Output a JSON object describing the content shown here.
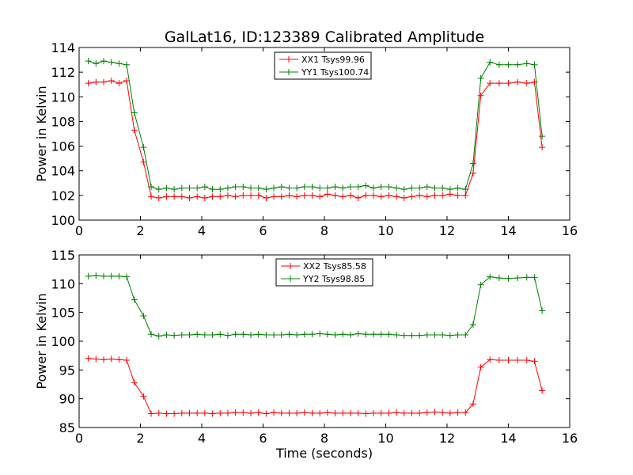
{
  "figure": {
    "title": "GalLat16, ID:123389 Calibrated Amplitude"
  },
  "chart_data": [
    {
      "type": "line",
      "title": "GalLat16, ID:123389 Calibrated Amplitude",
      "xlabel": "",
      "ylabel": "Power in Kelvin",
      "xlim": [
        0,
        16
      ],
      "ylim": [
        100,
        114
      ],
      "x_ticks": [
        0,
        2,
        4,
        6,
        8,
        10,
        12,
        14,
        16
      ],
      "y_ticks": [
        100,
        102,
        104,
        106,
        108,
        110,
        112,
        114
      ],
      "grid": false,
      "legend_position": "top-center",
      "x": [
        0.3,
        0.55,
        0.8,
        1.05,
        1.3,
        1.55,
        1.8,
        2.1,
        2.35,
        2.6,
        2.85,
        3.1,
        3.35,
        3.6,
        3.85,
        4.1,
        4.35,
        4.6,
        4.85,
        5.1,
        5.35,
        5.6,
        5.85,
        6.1,
        6.35,
        6.6,
        6.85,
        7.1,
        7.35,
        7.6,
        7.85,
        8.1,
        8.35,
        8.6,
        8.85,
        9.1,
        9.35,
        9.6,
        9.85,
        10.1,
        10.35,
        10.6,
        10.85,
        11.1,
        11.35,
        11.6,
        11.85,
        12.1,
        12.35,
        12.6,
        12.85,
        13.1,
        13.4,
        13.7,
        14.0,
        14.3,
        14.6,
        14.85,
        15.1
      ],
      "series": [
        {
          "name": "XX1 Tsys99.96",
          "color": "#ff0000",
          "values": [
            111.1,
            111.2,
            111.2,
            111.3,
            111.1,
            111.3,
            107.3,
            104.7,
            101.9,
            101.8,
            101.9,
            101.9,
            101.9,
            101.8,
            101.9,
            101.8,
            101.9,
            101.9,
            102.0,
            101.9,
            102.0,
            102.0,
            102.0,
            101.8,
            101.9,
            101.9,
            102.0,
            101.9,
            102.0,
            102.0,
            101.9,
            102.1,
            102.0,
            101.9,
            102.0,
            101.8,
            102.0,
            102.0,
            101.9,
            102.0,
            101.9,
            101.8,
            101.9,
            102.0,
            101.9,
            102.0,
            102.0,
            102.1,
            102.0,
            102.0,
            103.8,
            110.1,
            111.1,
            111.1,
            111.1,
            111.2,
            111.1,
            111.2,
            105.9
          ]
        },
        {
          "name": "YY1 Tsys100.74",
          "color": "#008000",
          "values": [
            112.9,
            112.7,
            112.9,
            112.8,
            112.7,
            112.6,
            108.7,
            105.9,
            102.7,
            102.5,
            102.6,
            102.5,
            102.6,
            102.6,
            102.6,
            102.7,
            102.5,
            102.5,
            102.6,
            102.7,
            102.7,
            102.6,
            102.6,
            102.5,
            102.6,
            102.7,
            102.6,
            102.6,
            102.7,
            102.7,
            102.6,
            102.6,
            102.7,
            102.6,
            102.7,
            102.7,
            102.8,
            102.6,
            102.7,
            102.7,
            102.6,
            102.5,
            102.6,
            102.6,
            102.7,
            102.6,
            102.6,
            102.5,
            102.6,
            102.5,
            104.6,
            111.5,
            112.8,
            112.6,
            112.6,
            112.6,
            112.7,
            112.6,
            106.8
          ]
        }
      ]
    },
    {
      "type": "line",
      "title": "",
      "xlabel": "Time (seconds)",
      "ylabel": "Power in Kelvin",
      "xlim": [
        0,
        16
      ],
      "ylim": [
        85,
        115
      ],
      "x_ticks": [
        0,
        2,
        4,
        6,
        8,
        10,
        12,
        14,
        16
      ],
      "y_ticks": [
        85,
        90,
        95,
        100,
        105,
        110,
        115
      ],
      "grid": false,
      "legend_position": "top-center",
      "x": [
        0.3,
        0.55,
        0.8,
        1.05,
        1.3,
        1.55,
        1.8,
        2.1,
        2.35,
        2.6,
        2.85,
        3.1,
        3.35,
        3.6,
        3.85,
        4.1,
        4.35,
        4.6,
        4.85,
        5.1,
        5.35,
        5.6,
        5.85,
        6.1,
        6.35,
        6.6,
        6.85,
        7.1,
        7.35,
        7.6,
        7.85,
        8.1,
        8.35,
        8.6,
        8.85,
        9.1,
        9.35,
        9.6,
        9.85,
        10.1,
        10.35,
        10.6,
        10.85,
        11.1,
        11.35,
        11.6,
        11.85,
        12.1,
        12.35,
        12.6,
        12.85,
        13.1,
        13.4,
        13.7,
        14.0,
        14.3,
        14.6,
        14.85,
        15.1
      ],
      "series": [
        {
          "name": "XX2 Tsys85.58",
          "color": "#ff0000",
          "values": [
            97.0,
            96.9,
            96.8,
            96.9,
            96.8,
            96.7,
            92.8,
            90.4,
            87.4,
            87.5,
            87.4,
            87.4,
            87.5,
            87.5,
            87.5,
            87.5,
            87.4,
            87.5,
            87.5,
            87.6,
            87.6,
            87.5,
            87.6,
            87.4,
            87.6,
            87.5,
            87.5,
            87.5,
            87.6,
            87.5,
            87.5,
            87.6,
            87.5,
            87.5,
            87.5,
            87.5,
            87.4,
            87.5,
            87.5,
            87.5,
            87.6,
            87.5,
            87.5,
            87.5,
            87.6,
            87.7,
            87.6,
            87.5,
            87.6,
            87.6,
            89.1,
            95.5,
            96.8,
            96.7,
            96.7,
            96.7,
            96.7,
            96.5,
            91.4
          ]
        },
        {
          "name": "YY2 Tsys98.85",
          "color": "#008000",
          "values": [
            111.3,
            111.4,
            111.3,
            111.3,
            111.3,
            111.2,
            107.2,
            104.4,
            101.2,
            100.9,
            101.1,
            101.0,
            101.1,
            101.1,
            101.2,
            101.1,
            101.1,
            101.2,
            101.0,
            101.2,
            101.2,
            101.1,
            101.2,
            101.1,
            101.1,
            101.1,
            101.2,
            101.1,
            101.2,
            101.2,
            101.3,
            101.2,
            101.1,
            101.2,
            101.1,
            101.3,
            101.2,
            101.2,
            101.2,
            101.2,
            101.1,
            101.0,
            101.0,
            101.0,
            101.1,
            101.1,
            101.1,
            101.0,
            101.1,
            101.1,
            102.9,
            109.8,
            111.2,
            111.0,
            110.9,
            111.0,
            111.1,
            111.1,
            105.3
          ]
        }
      ]
    }
  ]
}
